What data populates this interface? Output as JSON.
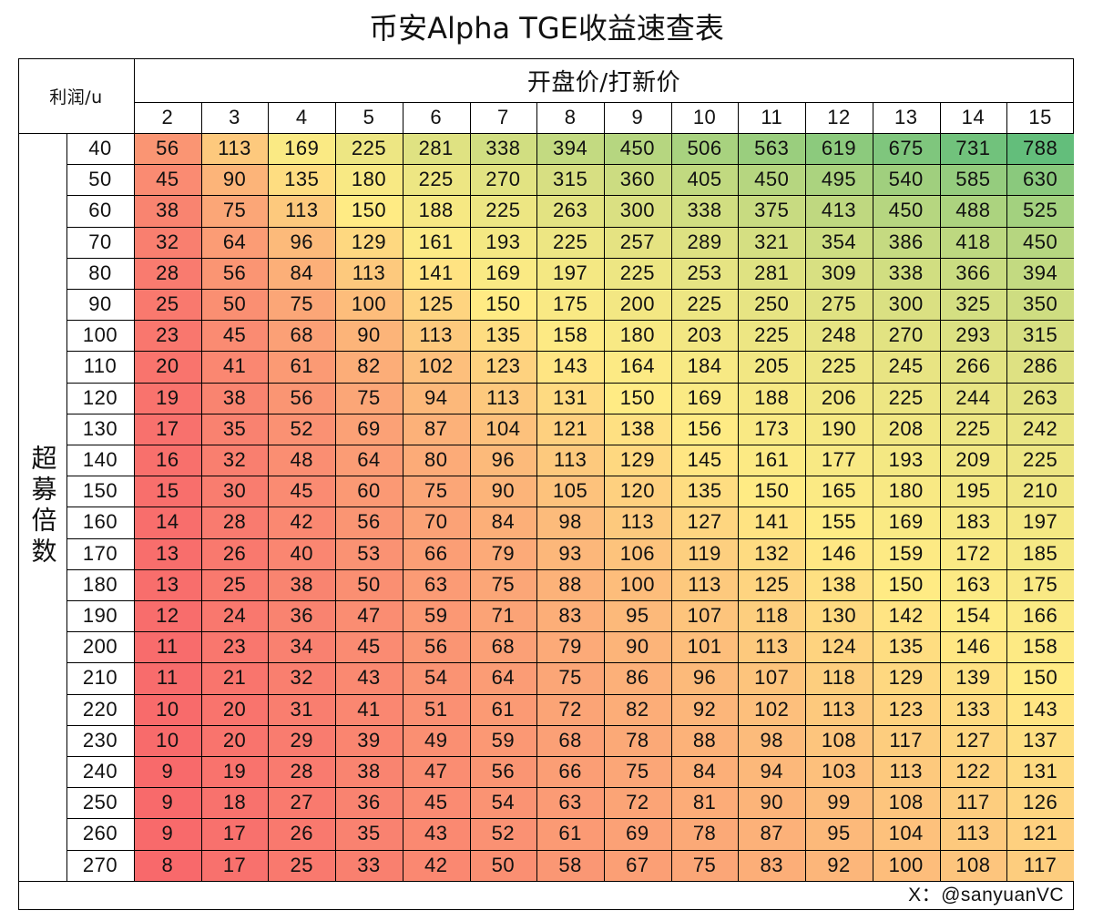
{
  "title": "币安Alpha TGE收益速查表",
  "corner_label": "利润/u",
  "column_group_label": "开盘价/打新价",
  "row_group_label": "超募倍数",
  "footer": "X：@sanyuanVC",
  "chart_data": {
    "type": "heatmap",
    "title": "币安Alpha TGE收益速查表",
    "xlabel": "开盘价/打新价",
    "ylabel": "超募倍数",
    "value_label": "利润/u",
    "x": [
      "2",
      "3",
      "4",
      "5",
      "6",
      "7",
      "8",
      "9",
      "10",
      "11",
      "12",
      "13",
      "14",
      "15"
    ],
    "y": [
      "40",
      "50",
      "60",
      "70",
      "80",
      "90",
      "100",
      "110",
      "120",
      "130",
      "140",
      "150",
      "160",
      "170",
      "180",
      "190",
      "200",
      "210",
      "220",
      "230",
      "240",
      "250",
      "260",
      "270"
    ],
    "values": [
      [
        56,
        113,
        169,
        225,
        281,
        338,
        394,
        450,
        506,
        563,
        619,
        675,
        731,
        788
      ],
      [
        45,
        90,
        135,
        180,
        225,
        270,
        315,
        360,
        405,
        450,
        495,
        540,
        585,
        630
      ],
      [
        38,
        75,
        113,
        150,
        188,
        225,
        263,
        300,
        338,
        375,
        413,
        450,
        488,
        525
      ],
      [
        32,
        64,
        96,
        129,
        161,
        193,
        225,
        257,
        289,
        321,
        354,
        386,
        418,
        450
      ],
      [
        28,
        56,
        84,
        113,
        141,
        169,
        197,
        225,
        253,
        281,
        309,
        338,
        366,
        394
      ],
      [
        25,
        50,
        75,
        100,
        125,
        150,
        175,
        200,
        225,
        250,
        275,
        300,
        325,
        350
      ],
      [
        23,
        45,
        68,
        90,
        113,
        135,
        158,
        180,
        203,
        225,
        248,
        270,
        293,
        315
      ],
      [
        20,
        41,
        61,
        82,
        102,
        123,
        143,
        164,
        184,
        205,
        225,
        245,
        266,
        286
      ],
      [
        19,
        38,
        56,
        75,
        94,
        113,
        131,
        150,
        169,
        188,
        206,
        225,
        244,
        263
      ],
      [
        17,
        35,
        52,
        69,
        87,
        104,
        121,
        138,
        156,
        173,
        190,
        208,
        225,
        242
      ],
      [
        16,
        32,
        48,
        64,
        80,
        96,
        113,
        129,
        145,
        161,
        177,
        193,
        209,
        225
      ],
      [
        15,
        30,
        45,
        60,
        75,
        90,
        105,
        120,
        135,
        150,
        165,
        180,
        195,
        210
      ],
      [
        14,
        28,
        42,
        56,
        70,
        84,
        98,
        113,
        127,
        141,
        155,
        169,
        183,
        197
      ],
      [
        13,
        26,
        40,
        53,
        66,
        79,
        93,
        106,
        119,
        132,
        146,
        159,
        172,
        185
      ],
      [
        13,
        25,
        38,
        50,
        63,
        75,
        88,
        100,
        113,
        125,
        138,
        150,
        163,
        175
      ],
      [
        12,
        24,
        36,
        47,
        59,
        71,
        83,
        95,
        107,
        118,
        130,
        142,
        154,
        166
      ],
      [
        11,
        23,
        34,
        45,
        56,
        68,
        79,
        90,
        101,
        113,
        124,
        135,
        146,
        158
      ],
      [
        11,
        21,
        32,
        43,
        54,
        64,
        75,
        86,
        96,
        107,
        118,
        129,
        139,
        150
      ],
      [
        10,
        20,
        31,
        41,
        51,
        61,
        72,
        82,
        92,
        102,
        113,
        123,
        133,
        143
      ],
      [
        10,
        20,
        29,
        39,
        49,
        59,
        68,
        78,
        88,
        98,
        108,
        117,
        127,
        137
      ],
      [
        9,
        19,
        28,
        38,
        47,
        56,
        66,
        75,
        84,
        94,
        103,
        113,
        122,
        131
      ],
      [
        9,
        18,
        27,
        36,
        45,
        54,
        63,
        72,
        81,
        90,
        99,
        108,
        117,
        126
      ],
      [
        9,
        17,
        26,
        35,
        43,
        52,
        61,
        69,
        78,
        87,
        95,
        104,
        113,
        121
      ],
      [
        8,
        17,
        25,
        33,
        42,
        50,
        58,
        67,
        75,
        83,
        92,
        100,
        108,
        117
      ]
    ],
    "color_scale": {
      "low": "#f8696b",
      "mid": "#ffeb84",
      "high": "#63be7b",
      "mid_value": 150
    }
  }
}
